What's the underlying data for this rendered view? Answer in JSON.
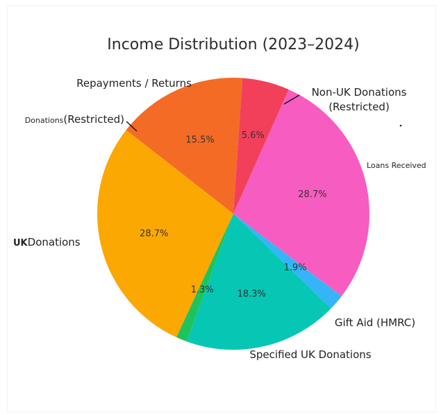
{
  "chart_data": {
    "type": "pie",
    "title": "Income Distribution (2023–2024)",
    "slices": [
      {
        "label": "Loans Received",
        "value": 28.7,
        "pct_label": "28.7%",
        "color": "#f75cc0"
      },
      {
        "label": "Non-UK Donations (Restricted)",
        "label_lines": [
          "Non-UK Donations",
          "(Restricted)"
        ],
        "value": 1.9,
        "pct_label": "1.9%",
        "color": "#35b5f8"
      },
      {
        "label": "Repayments / Returns",
        "value": 18.3,
        "pct_label": "18.3%",
        "color": "#06c7b4"
      },
      {
        "label": "Donations (Restricted)",
        "label_parts": [
          "Donations",
          "(Restricted)"
        ],
        "value": 1.3,
        "pct_label": "1.3%",
        "color": "#1ec35e"
      },
      {
        "label": "UKDonations",
        "label_parts": [
          "UK",
          "Donations"
        ],
        "value": 28.7,
        "pct_label": "28.7%",
        "color": "#fca803"
      },
      {
        "label": "Specified UK Donations",
        "value": 15.5,
        "pct_label": "15.5%",
        "color": "#f46b26"
      },
      {
        "label": "Gift Aid (HMRC)",
        "value": 5.6,
        "pct_label": "5.6%",
        "color": "#f2405b"
      }
    ]
  }
}
